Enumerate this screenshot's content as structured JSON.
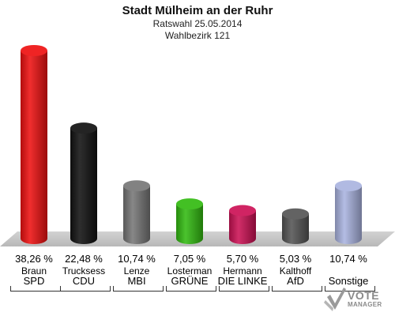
{
  "header": {
    "title": "Stadt Mülheim an der Ruhr",
    "subtitle1": "Ratswahl 25.05.2014",
    "subtitle2": "Wahlbezirk 121"
  },
  "chart_data": {
    "type": "bar",
    "title": "Stadt Mülheim an der Ruhr",
    "subtitle": [
      "Ratswahl 25.05.2014",
      "Wahlbezirk 121"
    ],
    "categories": [
      "SPD",
      "CDU",
      "MBI",
      "GRÜNE",
      "DIE LINKE",
      "AfD",
      "Sonstige"
    ],
    "candidates": [
      "Braun",
      "Trucksess",
      "Lenze",
      "Losterman",
      "Hermann",
      "Kalthoff",
      ""
    ],
    "values": [
      38.26,
      22.48,
      10.74,
      7.05,
      5.7,
      5.03,
      10.74
    ],
    "value_labels": [
      "38,26 %",
      "22,48 %",
      "10,74 %",
      "7,05 %",
      "5,70 %",
      "5,03 %",
      "10,74 %"
    ],
    "colors": [
      "#ee1111",
      "#111111",
      "#777777",
      "#33bb11",
      "#cc1155",
      "#555555",
      "#aab4e0"
    ],
    "ylim": [
      0,
      40
    ],
    "grid": false,
    "legend": "none"
  },
  "logo": {
    "text": "VOTE",
    "subtext": "MANAGER"
  }
}
